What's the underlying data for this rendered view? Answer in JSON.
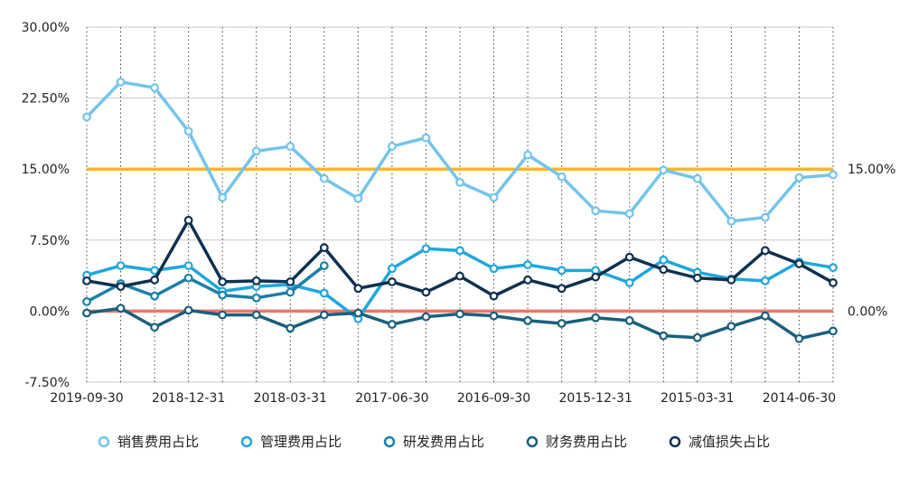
{
  "chart_data": {
    "type": "line",
    "title": "",
    "xlabel": "",
    "ylabel": "",
    "ylim": [
      -7.5,
      30
    ],
    "y_ticks": [
      "30.00%",
      "22.50%",
      "15.00%",
      "7.50%",
      "0.00%",
      "-7.50%"
    ],
    "y_tick_values": [
      30,
      22.5,
      15,
      7.5,
      0,
      -7.5
    ],
    "right_labels": [
      "15.00%",
      "0.00%"
    ],
    "x_ticks": [
      "2019-09-30",
      "2018-12-31",
      "2018-03-31",
      "2017-06-30",
      "2016-09-30",
      "2015-12-31",
      "2015-03-31",
      "2014-06-30"
    ],
    "x_tick_index": [
      0,
      3,
      6,
      9,
      12,
      15,
      18,
      21
    ],
    "point_count": 23,
    "grid": true,
    "legend_position": "bottom",
    "series": [
      {
        "name": "销售费用占比",
        "color": "#74c4ec",
        "values": [
          20.5,
          24.2,
          23.6,
          19.0,
          12.0,
          16.9,
          17.4,
          14.0,
          11.9,
          17.4,
          18.3,
          13.6,
          12.0,
          16.5,
          14.2,
          10.6,
          10.3,
          14.9,
          14.0,
          9.5,
          9.9,
          14.1,
          14.4
        ]
      },
      {
        "name": "管理费用占比",
        "color": "#1ea6de",
        "values": [
          3.8,
          4.8,
          4.3,
          4.8,
          2.1,
          2.6,
          2.8,
          1.9,
          -0.8,
          4.5,
          6.6,
          6.4,
          4.5,
          4.9,
          4.3,
          4.3,
          3.0,
          5.4,
          4.1,
          3.4,
          3.2,
          5.2,
          4.6
        ]
      },
      {
        "name": "研发费用占比",
        "color": "#1b7fa8",
        "values": [
          1.0,
          2.9,
          1.6,
          3.5,
          1.7,
          1.4,
          2.0,
          4.8,
          null,
          null,
          null,
          null,
          null,
          null,
          null,
          null,
          null,
          null,
          null,
          null,
          null,
          null,
          null
        ]
      },
      {
        "name": "财务费用占比",
        "color": "#195f7d",
        "values": [
          -0.2,
          0.3,
          -1.7,
          0.1,
          -0.4,
          -0.4,
          -1.8,
          -0.4,
          -0.2,
          -1.4,
          -0.6,
          -0.3,
          -0.5,
          -1.0,
          -1.3,
          -0.7,
          -1.0,
          -2.6,
          -2.8,
          -1.6,
          -0.5,
          -2.9,
          -2.1
        ]
      },
      {
        "name": "减值损失占比",
        "color": "#0e3150",
        "values": [
          3.2,
          2.6,
          3.3,
          9.6,
          3.1,
          3.2,
          3.1,
          6.7,
          2.4,
          3.1,
          2.0,
          3.7,
          1.6,
          3.3,
          2.4,
          3.6,
          5.7,
          4.4,
          3.5,
          3.3,
          6.4,
          5.0,
          3.0
        ]
      }
    ],
    "reference_lines": [
      {
        "value": 15,
        "color": "#f8b62d",
        "label": "15.00%"
      },
      {
        "value": 0,
        "color": "#ef7563",
        "label": "0.00%"
      }
    ]
  }
}
